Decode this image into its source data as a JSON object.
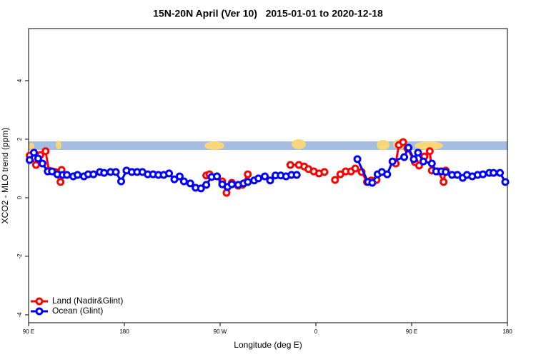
{
  "chart_data": {
    "type": "line",
    "title": "15N-20N April (Ver 10)   2015-01-01 to 2020-12-18",
    "x_label": "Longitude (deg E)",
    "y_label": "XCO2 - MLO trend (ppm)",
    "xlim": [
      90,
      540
    ],
    "xticks": [
      {
        "value": 90,
        "label": "90 E"
      },
      180,
      {
        "value": 270,
        "label": "90 W"
      },
      {
        "value": 360,
        "label": "0"
      },
      {
        "value": 450,
        "label": "90 E"
      },
      {
        "value": 540,
        "label": "180"
      }
    ],
    "ylim": [
      -4.27,
      5.78
    ],
    "yticks": [
      -4,
      -2,
      0,
      2,
      4
    ],
    "legend": "bottom-left",
    "series": [
      {
        "name": "Land (Nadir&Glint)",
        "color": "#ff0000",
        "x": [
          91,
          97,
          101,
          106,
          109,
          115,
          120,
          121,
          200,
          257,
          260,
          267,
          272,
          276,
          281,
          287,
          291,
          296,
          350,
          336,
          344,
          349,
          353,
          358,
          363,
          368,
          372,
          378,
          383,
          388,
          393,
          397,
          403,
          408,
          412,
          417,
          425,
          435,
          438,
          442,
          446,
          453,
          457,
          462,
          467,
          469,
          475,
          480,
          482
        ],
        "values": [
          1.44,
          1.12,
          1.46,
          1.59,
          0.93,
          0.88,
          0.54,
          0.95,
          null,
          0.76,
          0.8,
          0.73,
          0.56,
          0.17,
          0.51,
          0.41,
          0.44,
          0.8,
          null,
          1.12,
          1.12,
          1.07,
          0.98,
          0.9,
          0.83,
          0.88,
          null,
          0.61,
          0.8,
          0.9,
          0.9,
          1.0,
          0.88,
          0.54,
          0.59,
          0.61,
          null,
          1.17,
          1.8,
          1.9,
          1.68,
          1.22,
          1.1,
          1.41,
          1.59,
          0.93,
          0.9,
          0.54,
          0.93
        ]
      },
      {
        "name": "Ocean (Glint)",
        "color": "#0000ff",
        "x": [
          91,
          95,
          99,
          103,
          108,
          112,
          117,
          122,
          126,
          132,
          136,
          142,
          146,
          151,
          157,
          161,
          167,
          172,
          177,
          182,
          187,
          192,
          197,
          202,
          207,
          212,
          217,
          222,
          227,
          232,
          236,
          242,
          247,
          252,
          257,
          262,
          267,
          272,
          277,
          281,
          287,
          292,
          296,
          302,
          306,
          312,
          317,
          322,
          327,
          332,
          337,
          342,
          370,
          399,
          409,
          413,
          418,
          422,
          427,
          432,
          443,
          447,
          452,
          456,
          461,
          469,
          473,
          478,
          482,
          488,
          493,
          498,
          502,
          507,
          512,
          517,
          523,
          527,
          533,
          538
        ],
        "values": [
          1.29,
          1.54,
          1.34,
          1.17,
          0.9,
          0.9,
          0.8,
          0.78,
          0.78,
          0.73,
          0.78,
          0.73,
          0.8,
          0.8,
          0.88,
          0.85,
          0.88,
          0.88,
          0.56,
          0.93,
          0.88,
          0.88,
          0.88,
          0.8,
          0.8,
          0.78,
          0.78,
          0.83,
          0.63,
          0.73,
          0.56,
          0.49,
          0.34,
          0.32,
          0.44,
          0.71,
          0.73,
          0.46,
          0.37,
          0.46,
          0.44,
          0.49,
          0.54,
          0.59,
          0.66,
          0.73,
          0.59,
          0.76,
          0.76,
          0.73,
          0.78,
          0.78,
          null,
          1.32,
          0.54,
          0.51,
          0.8,
          0.88,
          0.8,
          1.24,
          1.39,
          1.71,
          1.32,
          1.54,
          1.24,
          1.17,
          0.9,
          0.9,
          0.88,
          0.78,
          0.78,
          0.68,
          0.78,
          0.73,
          0.78,
          0.8,
          0.85,
          0.85,
          0.85,
          0.54
        ]
      }
    ]
  }
}
